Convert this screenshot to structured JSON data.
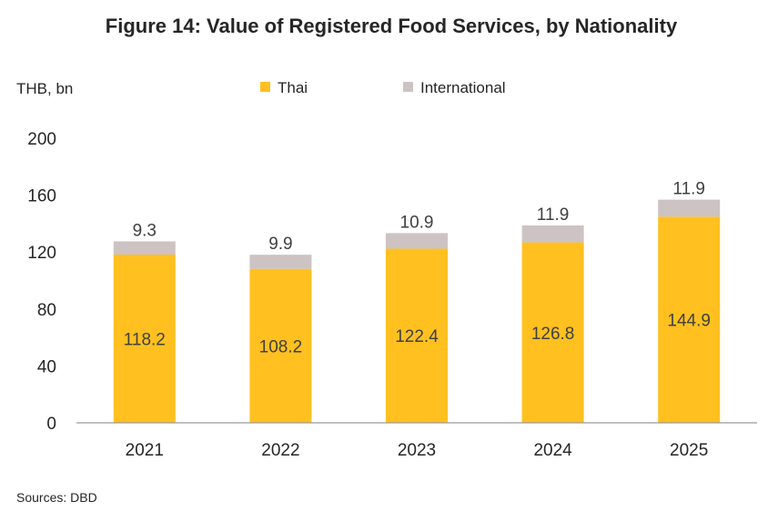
{
  "chart_data": {
    "type": "bar",
    "stacked": true,
    "title": "Figure 14: Value of Registered Food Services, by Nationality",
    "ylabel": "THB, bn",
    "xlabel": "",
    "categories": [
      "2021",
      "2022",
      "2023",
      "2024",
      "2025"
    ],
    "series": [
      {
        "name": "Thai",
        "values": [
          118.2,
          108.2,
          122.4,
          126.8,
          144.9
        ],
        "color": "#FFC020",
        "labels": [
          "118.2",
          "108.2",
          "122.4",
          "126.8",
          "144.9"
        ]
      },
      {
        "name": "International",
        "values": [
          9.3,
          9.9,
          10.9,
          11.9,
          11.9
        ],
        "color": "#CDC3C3",
        "labels": [
          "9.3",
          "9.9",
          "10.9",
          "11.9",
          "11.9"
        ]
      }
    ],
    "ylim": [
      0,
      200
    ],
    "yticks": [
      "0",
      "40",
      "80",
      "120",
      "160",
      "200"
    ],
    "grid": false,
    "legend_position": "top",
    "source": "Sources: DBD"
  }
}
